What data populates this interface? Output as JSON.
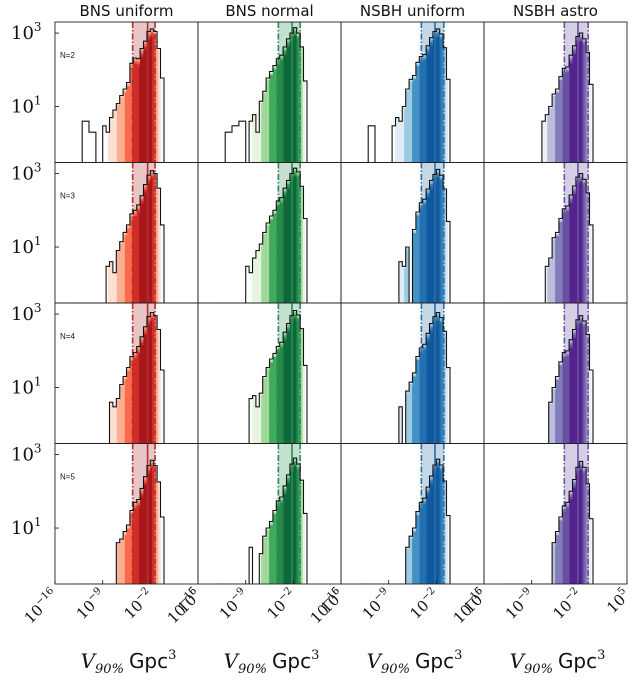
{
  "chart_data": {
    "type": "histogram",
    "xscale": "log",
    "yscale": "log",
    "columns": [
      {
        "title": "BNS uniform",
        "palette": "red",
        "colors": [
          "#fde0d2",
          "#fcae91",
          "#fb6a4a",
          "#de2d26",
          "#a50f15"
        ],
        "band_color": "#b03030",
        "band": [
          -4.6,
          -1.3
        ],
        "center": -2.4
      },
      {
        "title": "BNS normal",
        "palette": "green",
        "colors": [
          "#e5f5e0",
          "#a1d99b",
          "#41ab5d",
          "#238b45",
          "#005a32"
        ],
        "band_color": "#2e8b57",
        "band": [
          -4.2,
          -1.0
        ],
        "center": -2.2
      },
      {
        "title": "NSBH uniform",
        "palette": "blue",
        "colors": [
          "#deebf7",
          "#9ecae1",
          "#4292c6",
          "#2171b5",
          "#08519c"
        ],
        "band_color": "#2c6fa8",
        "band": [
          -4.2,
          -0.9
        ],
        "center": -2.2
      },
      {
        "title": "NSBH astro",
        "palette": "purple",
        "colors": [
          "#efedf5",
          "#bcbddc",
          "#807dba",
          "#6a51a3",
          "#4a1486"
        ],
        "band_color": "#6a4fa3",
        "band": [
          -4.2,
          -0.7
        ],
        "center": -2.2
      }
    ],
    "rows": [
      {
        "label": "N=2",
        "ylim": [
          0.3,
          2000
        ],
        "yticks": [
          {
            "base": "10",
            "exp": "3",
            "value": 1000
          },
          {
            "base": "10",
            "exp": "1",
            "value": 10
          }
        ]
      },
      {
        "label": "N=3",
        "ylim": [
          0.3,
          2000
        ],
        "yticks": [
          {
            "base": "10",
            "exp": "3",
            "value": 1000
          },
          {
            "base": "10",
            "exp": "1",
            "value": 10
          }
        ]
      },
      {
        "label": "N=4",
        "ylim": [
          0.3,
          2000
        ],
        "yticks": [
          {
            "base": "10",
            "exp": "3",
            "value": 1000
          },
          {
            "base": "10",
            "exp": "1",
            "value": 10
          }
        ]
      },
      {
        "label": "N=5",
        "ylim": [
          0.3,
          2000
        ],
        "yticks": [
          {
            "base": "10",
            "exp": "3",
            "value": 1000
          },
          {
            "base": "10",
            "exp": "1",
            "value": 10
          }
        ]
      }
    ],
    "x_ticks": [
      {
        "value": -16,
        "base": "10",
        "exp": "−16"
      },
      {
        "value": -9,
        "base": "10",
        "exp": "−9"
      },
      {
        "value": -2,
        "base": "10",
        "exp": "−2"
      },
      {
        "value": 5,
        "base": "10",
        "exp": "5"
      }
    ],
    "xlim_log10": [
      -16,
      5
    ],
    "xlabel": {
      "var": "V",
      "sub": "90%",
      "unit": "Gpc",
      "unit_exp": "3"
    },
    "bin_edges_log10": [
      -13,
      -12,
      -11,
      -10,
      -9,
      -8.5,
      -8,
      -7.5,
      -7,
      -6.5,
      -6,
      -5.5,
      -5,
      -4.5,
      -4,
      -3.5,
      -3,
      -2.5,
      -2,
      -1.5,
      -1,
      -0.5,
      0
    ],
    "counts": [
      [
        [
          0,
          4,
          2,
          0,
          3,
          2,
          5,
          8,
          12,
          20,
          30,
          45,
          150,
          210,
          200,
          380,
          600,
          1100,
          1300,
          1100,
          380,
          60
        ],
        [
          0,
          2,
          3,
          4,
          0,
          4,
          6,
          2,
          14,
          26,
          60,
          90,
          130,
          200,
          250,
          420,
          700,
          1000,
          1400,
          1000,
          420,
          50
        ],
        [
          0,
          3,
          0,
          0,
          0,
          3,
          5,
          4,
          10,
          30,
          55,
          70,
          160,
          230,
          260,
          450,
          750,
          1100,
          1300,
          950,
          400,
          55
        ],
        [
          0,
          0,
          0,
          0,
          0,
          0,
          0,
          4,
          6,
          10,
          22,
          30,
          65,
          110,
          120,
          250,
          450,
          800,
          1000,
          700,
          300,
          40
        ]
      ],
      [
        [
          0,
          0,
          0,
          0,
          0,
          3,
          4,
          2,
          8,
          14,
          25,
          40,
          80,
          100,
          140,
          250,
          500,
          900,
          1200,
          1000,
          400,
          40
        ],
        [
          0,
          0,
          0,
          0,
          3,
          2,
          5,
          8,
          12,
          25,
          45,
          70,
          100,
          180,
          220,
          400,
          650,
          1000,
          1400,
          1100,
          450,
          60
        ],
        [
          0,
          0,
          0,
          0,
          0,
          0,
          0,
          4,
          3,
          10,
          0,
          30,
          90,
          160,
          200,
          380,
          650,
          950,
          1300,
          900,
          380,
          50
        ],
        [
          0,
          0,
          0,
          0,
          0,
          0,
          0,
          0,
          3,
          5,
          18,
          25,
          60,
          110,
          130,
          260,
          460,
          800,
          1000,
          700,
          300,
          40
        ]
      ],
      [
        [
          0,
          0,
          0,
          0,
          0,
          0,
          4,
          3,
          5,
          12,
          20,
          35,
          70,
          90,
          130,
          240,
          450,
          850,
          1100,
          900,
          380,
          30
        ],
        [
          0,
          0,
          0,
          0,
          0,
          5,
          6,
          3,
          7,
          20,
          35,
          60,
          85,
          130,
          170,
          320,
          550,
          900,
          1250,
          950,
          400,
          40
        ],
        [
          0,
          0,
          0,
          0,
          0,
          0,
          0,
          3,
          0,
          8,
          14,
          25,
          70,
          120,
          150,
          300,
          550,
          850,
          1100,
          800,
          340,
          35
        ],
        [
          0,
          0,
          0,
          0,
          0,
          0,
          0,
          0,
          0,
          4,
          10,
          20,
          50,
          90,
          100,
          200,
          380,
          700,
          900,
          650,
          280,
          30
        ]
      ],
      [
        [
          0,
          0,
          0,
          0,
          0,
          0,
          0,
          0,
          4,
          5,
          8,
          12,
          30,
          50,
          60,
          120,
          250,
          500,
          700,
          500,
          180,
          20
        ],
        [
          0,
          0,
          0,
          0,
          0,
          3,
          0,
          0,
          2,
          6,
          10,
          15,
          30,
          55,
          70,
          140,
          280,
          550,
          800,
          550,
          200,
          25
        ],
        [
          0,
          0,
          0,
          0,
          0,
          0,
          0,
          0,
          0,
          3,
          6,
          10,
          28,
          50,
          65,
          130,
          260,
          520,
          750,
          520,
          190,
          22
        ],
        [
          0,
          0,
          0,
          0,
          0,
          0,
          0,
          0,
          0,
          0,
          4,
          8,
          20,
          40,
          50,
          100,
          210,
          450,
          650,
          450,
          160,
          18
        ]
      ]
    ]
  }
}
